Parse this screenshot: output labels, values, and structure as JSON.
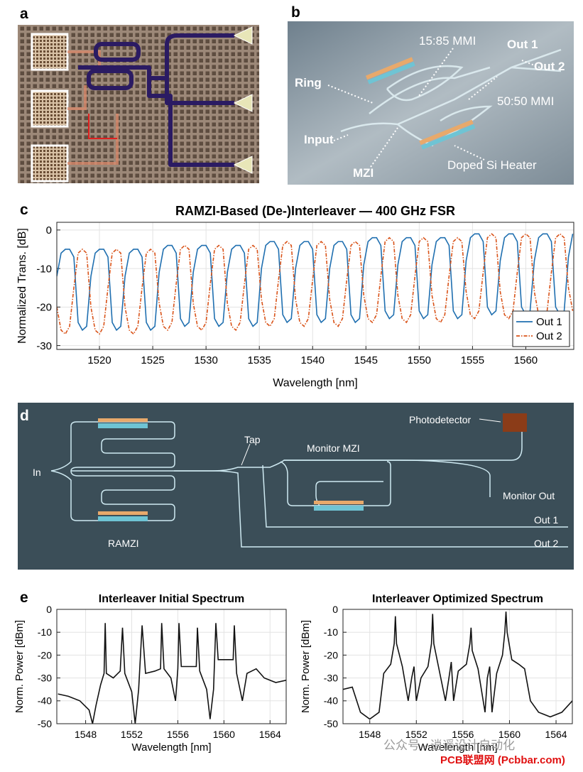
{
  "panels": {
    "a": "a",
    "b": "b",
    "c": "c",
    "d": "d",
    "e": "e"
  },
  "panel_b": {
    "mmi_1585": "15:85 MMI",
    "out1": "Out 1",
    "out2": "Out 2",
    "ring": "Ring",
    "mmi_5050": "50:50 MMI",
    "input": "Input",
    "mzi": "MZI",
    "heater": "Doped Si Heater"
  },
  "panel_d": {
    "input": "In",
    "tap": "Tap",
    "monitor_mzi": "Monitor MZI",
    "photodetector": "Photodetector",
    "monitor_out": "Monitor Out",
    "out1": "Out 1",
    "out2": "Out 2",
    "ramzi": "RAMZI"
  },
  "watermark": {
    "line1": "公众号 · 逍遥设计自动化",
    "line2": "PCB联盟网 (Pcbbar.com)"
  },
  "chart_data": [
    {
      "type": "line",
      "title": "RAMZI-Based (De-)Interleaver — 400 GHz FSR",
      "xlabel": "Wavelength [nm]",
      "ylabel": "Normalized Trans. [dB]",
      "xlim": [
        1516,
        1564.5
      ],
      "ylim": [
        -31,
        2
      ],
      "xticks": [
        1520,
        1525,
        1530,
        1535,
        1540,
        1545,
        1550,
        1555,
        1560
      ],
      "yticks": [
        -30,
        -20,
        -10,
        0
      ],
      "grid": true,
      "legend": "lower right",
      "x": [
        1516,
        1516.4,
        1516.8,
        1517.2,
        1517.6,
        1518,
        1518.4,
        1518.8,
        1519.2,
        1519.6,
        1520,
        1520.4,
        1520.8,
        1521.2,
        1521.6,
        1522,
        1522.4,
        1522.8,
        1523.2,
        1523.6,
        1524,
        1524.4,
        1524.8,
        1525.2,
        1525.6,
        1526,
        1526.4,
        1526.8,
        1527.2,
        1527.6,
        1528,
        1528.4,
        1528.8,
        1529.2,
        1529.6,
        1530,
        1530.4,
        1530.8,
        1531.2,
        1531.6,
        1532,
        1532.4,
        1532.8,
        1533.2,
        1533.6,
        1534,
        1534.4,
        1534.8,
        1535.2,
        1535.6,
        1536,
        1536.4,
        1536.8,
        1537.2,
        1537.6,
        1538,
        1538.4,
        1538.8,
        1539.2,
        1539.6,
        1540,
        1540.4,
        1540.8,
        1541.2,
        1541.6,
        1542,
        1542.4,
        1542.8,
        1543.2,
        1543.6,
        1544,
        1544.4,
        1544.8,
        1545.2,
        1545.6,
        1546,
        1546.4,
        1546.8,
        1547.2,
        1547.6,
        1548,
        1548.4,
        1548.8,
        1549.2,
        1549.6,
        1550,
        1550.4,
        1550.8,
        1551.2,
        1551.6,
        1552,
        1552.4,
        1552.8,
        1553.2,
        1553.6,
        1554,
        1554.4,
        1554.8,
        1555.2,
        1555.6,
        1556,
        1556.4,
        1556.8,
        1557.2,
        1557.6,
        1558,
        1558.4,
        1558.8,
        1559.2,
        1559.6,
        1560,
        1560.4,
        1560.8,
        1561.2,
        1561.6,
        1562,
        1562.4,
        1562.8,
        1563.2,
        1563.6,
        1564,
        1564.4
      ],
      "series": [
        {
          "name": "Out 1",
          "color": "#1f6fb0",
          "style": "solid",
          "values": [
            -12,
            -6,
            -5,
            -5,
            -7,
            -24,
            -26,
            -25,
            -12,
            -6,
            -5,
            -5,
            -7,
            -24,
            -26,
            -25,
            -12,
            -6,
            -5,
            -5,
            -7,
            -24,
            -26,
            -25,
            -11,
            -5,
            -4,
            -4,
            -6,
            -23,
            -25,
            -24,
            -11,
            -5,
            -4,
            -4,
            -6,
            -23,
            -25,
            -24,
            -11,
            -5,
            -4,
            -4,
            -6,
            -23,
            -25,
            -24,
            -10,
            -4,
            -3,
            -3,
            -5,
            -22,
            -24,
            -23,
            -10,
            -4,
            -3,
            -3,
            -5,
            -22,
            -24,
            -23,
            -10,
            -4,
            -3,
            -3,
            -5,
            -22,
            -24,
            -23,
            -9,
            -3,
            -2,
            -2,
            -4,
            -21,
            -23,
            -22,
            -9,
            -3,
            -2,
            -2,
            -4,
            -21,
            -23,
            -22,
            -9,
            -3,
            -2,
            -2,
            -4,
            -21,
            -23,
            -22,
            -8,
            -2,
            -1,
            -1,
            -3,
            -20,
            -22,
            -21,
            -8,
            -2,
            -1,
            -1,
            -3,
            -20,
            -22,
            -21,
            -8,
            -2,
            -1,
            -1,
            -3,
            -20,
            -22,
            -21,
            -7,
            -1
          ]
        },
        {
          "name": "Out 2",
          "color": "#d95319",
          "style": "dashed",
          "values": [
            -20,
            -26,
            -27,
            -25,
            -15,
            -6,
            -5,
            -6,
            -20,
            -26,
            -27,
            -25,
            -15,
            -6,
            -5,
            -6,
            -20,
            -26,
            -27,
            -25,
            -15,
            -6,
            -5,
            -6,
            -19,
            -25,
            -26,
            -24,
            -14,
            -5,
            -4,
            -5,
            -19,
            -25,
            -26,
            -24,
            -14,
            -5,
            -4,
            -5,
            -19,
            -25,
            -26,
            -24,
            -14,
            -5,
            -4,
            -5,
            -18,
            -24,
            -25,
            -23,
            -13,
            -4,
            -3,
            -4,
            -18,
            -24,
            -25,
            -23,
            -13,
            -4,
            -3,
            -4,
            -18,
            -24,
            -25,
            -23,
            -13,
            -4,
            -3,
            -4,
            -17,
            -23,
            -24,
            -22,
            -12,
            -3,
            -2,
            -3,
            -17,
            -23,
            -24,
            -22,
            -12,
            -3,
            -2,
            -3,
            -17,
            -23,
            -24,
            -22,
            -12,
            -3,
            -2,
            -3,
            -16,
            -22,
            -23,
            -21,
            -11,
            -2,
            -1,
            -2,
            -16,
            -22,
            -23,
            -21,
            -11,
            -2,
            -1,
            -2,
            -16,
            -22,
            -23,
            -21,
            -11,
            -2,
            -1,
            -2,
            -15,
            -21
          ]
        }
      ]
    },
    {
      "type": "line",
      "title": "Interleaver Initial Spectrum",
      "xlabel": "Wavelength [nm]",
      "ylabel": "Norm. Power [dBm]",
      "xlim": [
        1545.5,
        1565.4
      ],
      "ylim": [
        -50,
        0
      ],
      "xticks": [
        1548,
        1552,
        1556,
        1560,
        1564
      ],
      "yticks": [
        -50,
        -40,
        -30,
        -20,
        -10,
        0
      ],
      "grid": true,
      "x": [
        1545.6,
        1546.5,
        1547.5,
        1548.3,
        1548.6,
        1548.9,
        1549.3,
        1549.6,
        1549.7,
        1549.8,
        1550.4,
        1551,
        1551.2,
        1551.4,
        1552,
        1552.3,
        1552.6,
        1552.9,
        1553.2,
        1554,
        1554.5,
        1554.6,
        1554.8,
        1555.4,
        1555.8,
        1556,
        1556.1,
        1556.3,
        1557,
        1557.6,
        1557.7,
        1557.9,
        1558.5,
        1558.8,
        1559.1,
        1559.3,
        1559.5,
        1560.3,
        1560.8,
        1560.9,
        1561.1,
        1561.6,
        1562,
        1562.8,
        1563.5,
        1564.5,
        1565.4
      ],
      "color": "#111111",
      "values": [
        -37,
        -38,
        -40,
        -44,
        -50,
        -42,
        -33,
        -28,
        -6,
        -28,
        -30,
        -27,
        -8,
        -28,
        -36,
        -50,
        -35,
        -7,
        -28,
        -27,
        -26,
        -6,
        -26,
        -30,
        -40,
        -26,
        -6,
        -25,
        -25,
        -25,
        -8,
        -27,
        -35,
        -48,
        -35,
        -6,
        -22,
        -22,
        -22,
        -7,
        -28,
        -40,
        -28,
        -26,
        -30,
        -32,
        -31
      ]
    },
    {
      "type": "line",
      "title": "Interleaver Optimized Spectrum",
      "xlabel": "Wavelength [nm]",
      "ylabel": "Norm. Power [dBm]",
      "xlim": [
        1545.7,
        1565.4
      ],
      "ylim": [
        -50,
        0
      ],
      "xticks": [
        1548,
        1552,
        1556,
        1560,
        1564
      ],
      "yticks": [
        -50,
        -40,
        -30,
        -20,
        -10,
        0
      ],
      "grid": true,
      "x": [
        1545.7,
        1546.5,
        1547.2,
        1548,
        1548.8,
        1549.2,
        1549.8,
        1550.1,
        1550.2,
        1550.3,
        1550.8,
        1551.3,
        1551.6,
        1551.8,
        1552,
        1552.4,
        1553,
        1553.3,
        1553.4,
        1553.5,
        1553.9,
        1554.5,
        1554.8,
        1555,
        1555.2,
        1555.6,
        1556.3,
        1556.6,
        1556.7,
        1556.8,
        1557.3,
        1557.9,
        1558.1,
        1558.3,
        1558.5,
        1558.9,
        1559.4,
        1559.6,
        1559.7,
        1559.8,
        1560.2,
        1560.8,
        1561.3,
        1561.8,
        1562.5,
        1563.5,
        1564.5,
        1565.4
      ],
      "color": "#111111",
      "values": [
        -35,
        -34,
        -45,
        -48,
        -45,
        -28,
        -24,
        -15,
        -3,
        -15,
        -25,
        -40,
        -30,
        -25,
        -40,
        -30,
        -25,
        -15,
        -2,
        -15,
        -25,
        -40,
        -30,
        -23,
        -40,
        -27,
        -24,
        -15,
        -8,
        -18,
        -26,
        -45,
        -30,
        -25,
        -45,
        -28,
        -20,
        -10,
        -1,
        -10,
        -22,
        -24,
        -26,
        -40,
        -45,
        -47,
        -45,
        -40
      ]
    }
  ]
}
